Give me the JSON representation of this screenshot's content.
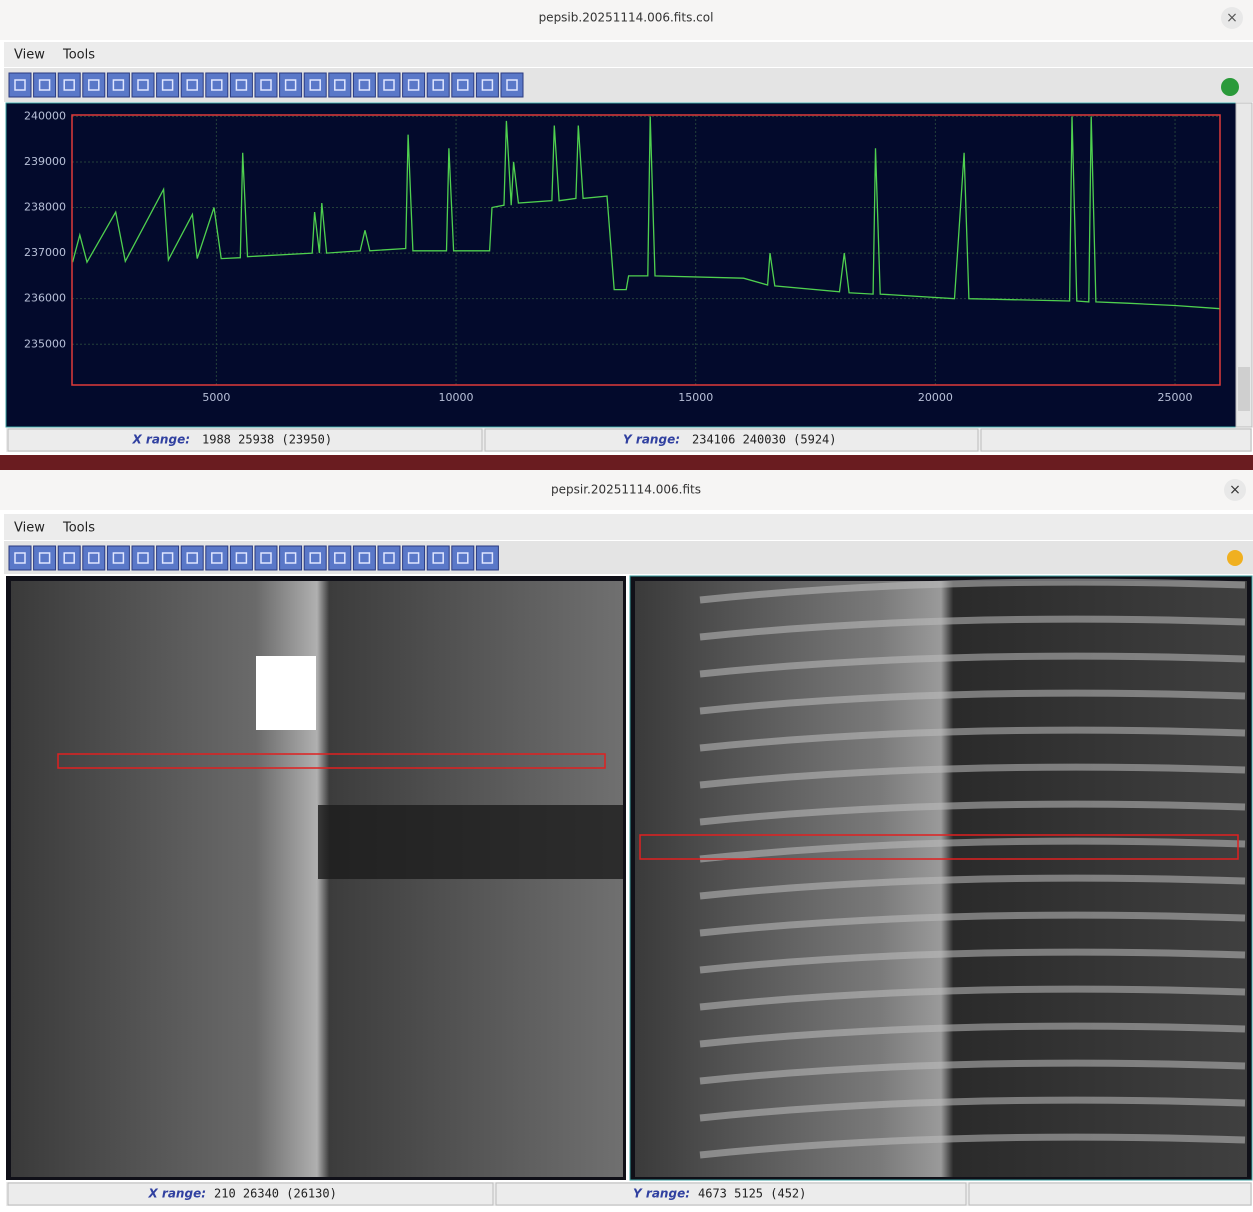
{
  "windows": [
    {
      "title": "pepsib.20251114.006.fits.col",
      "close": "×",
      "menu": [
        "View",
        "Tools"
      ],
      "status": {
        "x_label": "X range:",
        "x_value": "1988 25938 (23950)",
        "y_label": "Y range:",
        "y_value": "234106 240030 (5924)"
      }
    },
    {
      "title": "pepsir.20251114.006.fits",
      "close": "×",
      "menu": [
        "View",
        "Tools"
      ],
      "status": {
        "x_label": "X range:",
        "x_value": "210 26340 (26130)",
        "y_label": "Y range:",
        "y_value": "4673 5125 (452)"
      }
    }
  ],
  "chart_data": {
    "type": "line",
    "color": "#4fd04f",
    "grid": true,
    "frame_color": "#e03a3a",
    "xlim": [
      1988,
      25938
    ],
    "ylim": [
      234106,
      240030
    ],
    "xticks": [
      5000,
      10000,
      15000,
      20000,
      25000
    ],
    "yticks": [
      235000,
      236000,
      237000,
      238000,
      239000,
      240000
    ],
    "x": [
      2000,
      2150,
      2300,
      2900,
      3100,
      3900,
      4000,
      4500,
      4600,
      4950,
      5100,
      5500,
      5550,
      5650,
      7000,
      7050,
      7150,
      7200,
      7300,
      8000,
      8100,
      8200,
      8950,
      9000,
      9100,
      9800,
      9850,
      9950,
      10700,
      10750,
      11000,
      11050,
      11150,
      11200,
      11300,
      12000,
      12050,
      12150,
      12500,
      12550,
      12650,
      13150,
      13300,
      13550,
      13600,
      14000,
      14050,
      14150,
      16000,
      16500,
      16550,
      16650,
      18000,
      18100,
      18200,
      18700,
      18750,
      18850,
      20400,
      20600,
      20700,
      22800,
      22850,
      22950,
      23200,
      23250,
      23350,
      24000,
      25000,
      25938
    ],
    "values": [
      236800,
      237400,
      236800,
      237900,
      236820,
      238400,
      236850,
      237850,
      236880,
      238000,
      236880,
      236900,
      239200,
      236920,
      237000,
      237900,
      237000,
      238100,
      237000,
      237050,
      237500,
      237050,
      237100,
      239600,
      237050,
      237050,
      239300,
      237050,
      237050,
      238000,
      238050,
      239900,
      238050,
      239000,
      238100,
      238150,
      239800,
      238150,
      238200,
      239800,
      238200,
      238250,
      236200,
      236200,
      236500,
      236500,
      240000,
      236500,
      236450,
      236300,
      237000,
      236280,
      236150,
      237000,
      236130,
      236100,
      239300,
      236100,
      236000,
      239200,
      236000,
      235950,
      240000,
      235950,
      235930,
      240000,
      235930,
      235900,
      235850,
      235780
    ]
  }
}
